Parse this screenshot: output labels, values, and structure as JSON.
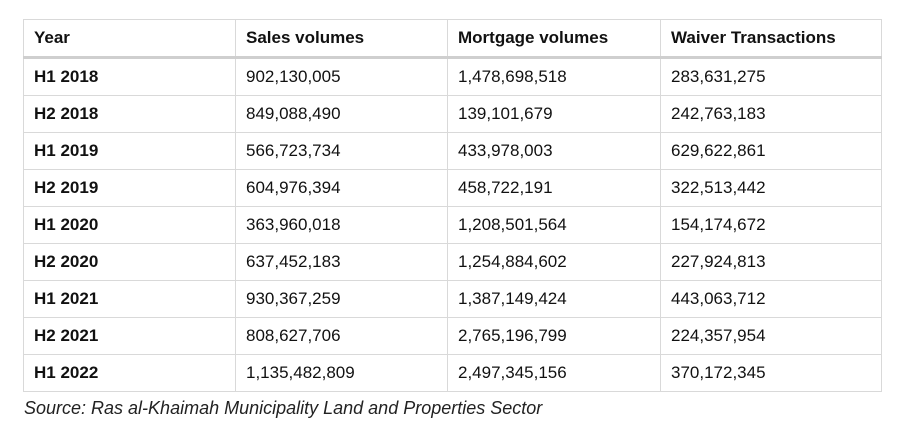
{
  "table": {
    "headers": [
      "Year",
      "Sales volumes",
      "Mortgage volumes",
      "Waiver Transactions"
    ],
    "rows": [
      [
        "H1 2018",
        "902,130,005",
        "1,478,698,518",
        "283,631,275"
      ],
      [
        "H2 2018",
        "849,088,490",
        "139,101,679",
        "242,763,183"
      ],
      [
        "H1 2019",
        "566,723,734",
        "433,978,003",
        "629,622,861"
      ],
      [
        "H2 2019",
        "604,976,394",
        "458,722,191",
        "322,513,442"
      ],
      [
        "H1 2020",
        "363,960,018",
        "1,208,501,564",
        "154,174,672"
      ],
      [
        "H2 2020",
        "637,452,183",
        "1,254,884,602",
        "227,924,813"
      ],
      [
        "H1 2021",
        "930,367,259",
        "1,387,149,424",
        "443,063,712"
      ],
      [
        "H2 2021",
        "808,627,706",
        "2,765,196,799",
        "224,357,954"
      ],
      [
        "H1 2022",
        "1,135,482,809",
        "2,497,345,156",
        "370,172,345"
      ]
    ]
  },
  "source": "Source: Ras al-Khaimah Municipality Land and Properties Sector",
  "colors": {
    "border": "#d9d9d9",
    "header_rule": "#cfcfcf",
    "text": "#111111"
  }
}
